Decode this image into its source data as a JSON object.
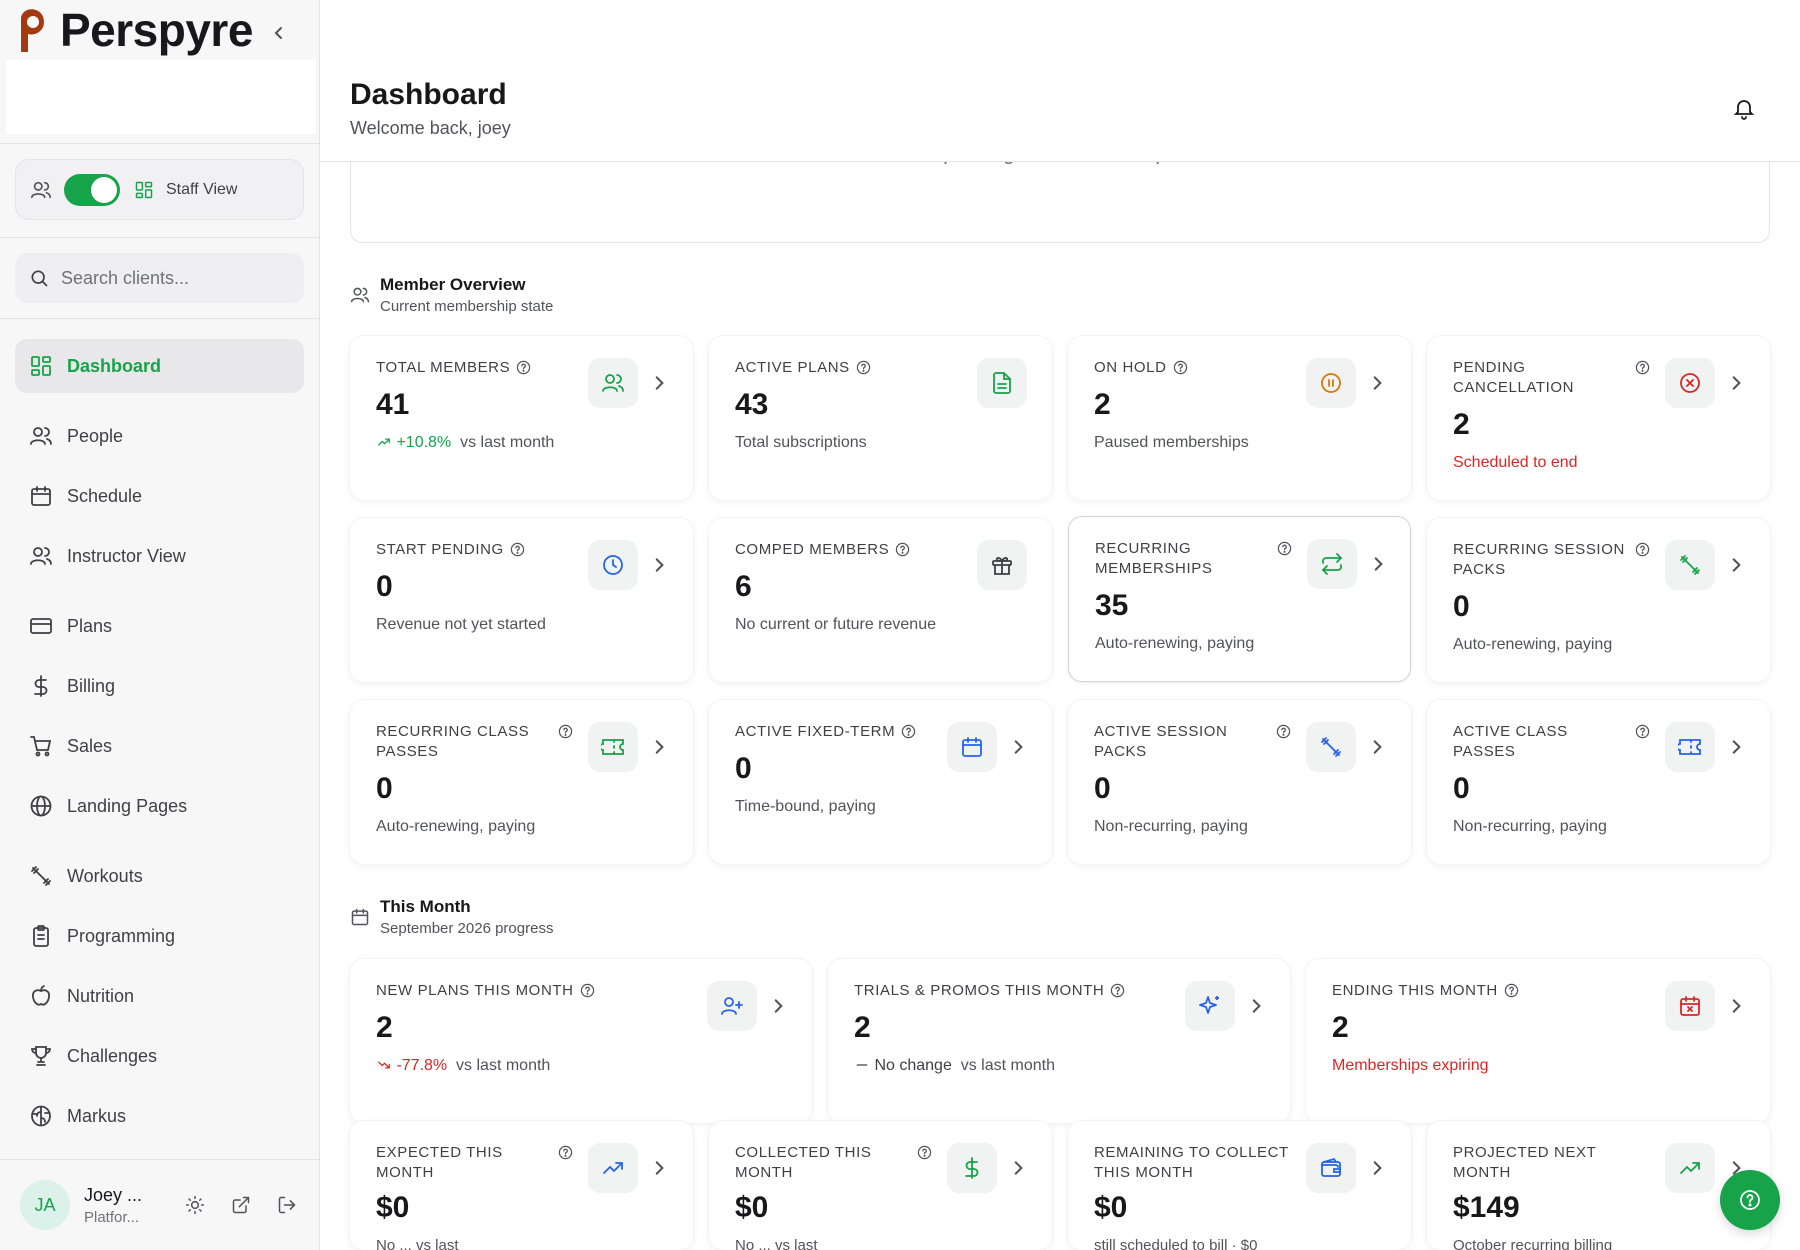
{
  "app": {
    "brand": "Perspyre"
  },
  "sidebar": {
    "view_label": "Staff View",
    "search_placeholder": "Search clients...",
    "items": [
      {
        "label": "Dashboard",
        "icon": "dashboard-icon",
        "active": true
      },
      {
        "label": "People",
        "icon": "people-icon"
      },
      {
        "label": "Schedule",
        "icon": "calendar-icon"
      },
      {
        "label": "Instructor View",
        "icon": "instructor-icon"
      },
      {
        "label": "Plans",
        "icon": "credit-card-icon"
      },
      {
        "label": "Billing",
        "icon": "dollar-icon"
      },
      {
        "label": "Sales",
        "icon": "cart-icon"
      },
      {
        "label": "Landing Pages",
        "icon": "globe-icon"
      },
      {
        "label": "Workouts",
        "icon": "dumbbell-icon"
      },
      {
        "label": "Programming",
        "icon": "clipboard-icon"
      },
      {
        "label": "Nutrition",
        "icon": "apple-icon"
      },
      {
        "label": "Challenges",
        "icon": "trophy-icon"
      },
      {
        "label": "Markus",
        "icon": "brain-icon"
      }
    ],
    "user": {
      "initials": "JA",
      "name": "Joey ...",
      "role": "Platfor..."
    }
  },
  "header": {
    "title": "Dashboard",
    "subtitle": "Welcome back, joey"
  },
  "pending_requests": {
    "text": "No pending cancellation requests"
  },
  "member_overview": {
    "title": "Member Overview",
    "subtitle": "Current membership state",
    "cards": [
      {
        "label": "TOTAL MEMBERS",
        "value": "41",
        "trend": "+10.8%",
        "trend_suffix": "vs last month",
        "icon": "users-icon"
      },
      {
        "label": "ACTIVE PLANS",
        "value": "43",
        "sub": "Total subscriptions",
        "icon": "document-icon"
      },
      {
        "label": "ON HOLD",
        "value": "2",
        "sub": "Paused memberships",
        "icon": "pause-icon"
      },
      {
        "label": "PENDING CANCELLATION",
        "value": "2",
        "sub": "Scheduled to end",
        "icon": "x-circle-icon"
      },
      {
        "label": "START PENDING",
        "value": "0",
        "sub": "Revenue not yet started",
        "icon": "clock-icon"
      },
      {
        "label": "COMPED MEMBERS",
        "value": "6",
        "sub": "No current or future revenue",
        "icon": "gift-icon"
      },
      {
        "label": "RECURRING MEMBERSHIPS",
        "value": "35",
        "sub": "Auto-renewing, paying",
        "icon": "repeat-icon"
      },
      {
        "label": "RECURRING SESSION PACKS",
        "value": "0",
        "sub": "Auto-renewing, paying",
        "icon": "dumbbell-icon"
      },
      {
        "label": "RECURRING CLASS PASSES",
        "value": "0",
        "sub": "Auto-renewing, paying",
        "icon": "ticket-icon"
      },
      {
        "label": "ACTIVE FIXED-TERM",
        "value": "0",
        "sub": "Time-bound, paying",
        "icon": "calendar-icon"
      },
      {
        "label": "ACTIVE SESSION PACKS",
        "value": "0",
        "sub": "Non-recurring, paying",
        "icon": "dumbbell-icon"
      },
      {
        "label": "ACTIVE CLASS PASSES",
        "value": "0",
        "sub": "Non-recurring, paying",
        "icon": "ticket-icon"
      }
    ]
  },
  "this_month": {
    "title": "This Month",
    "subtitle": "September 2026 progress",
    "cards": [
      {
        "label": "NEW PLANS THIS MONTH",
        "value": "2",
        "trend": "-77.8%",
        "trend_suffix": "vs last month",
        "icon": "user-plus-icon"
      },
      {
        "label": "TRIALS & PROMOS THIS MONTH",
        "value": "2",
        "trend": "No change",
        "trend_suffix": "vs last month",
        "icon": "sparkles-icon"
      },
      {
        "label": "ENDING THIS MONTH",
        "value": "2",
        "sub": "Memberships expiring",
        "icon": "calendar-x-icon"
      }
    ],
    "finance_cards": [
      {
        "label": "EXPECTED THIS MONTH",
        "value": "$0",
        "sub": "No ... vs last",
        "icon": "trending-up-icon"
      },
      {
        "label": "COLLECTED THIS MONTH",
        "value": "$0",
        "sub": "No ... vs last",
        "icon": "dollar-icon"
      },
      {
        "label": "REMAINING TO COLLECT THIS MONTH",
        "value": "$0",
        "sub": "still scheduled to bill · $0",
        "icon": "wallet-icon"
      },
      {
        "label": "PROJECTED NEXT MONTH",
        "value": "$149",
        "sub": "October recurring billing",
        "icon": "trending-up-icon"
      }
    ]
  },
  "colors": {
    "accent": "#16a34a",
    "danger": "#dc2626",
    "info": "#2563eb",
    "warning": "#d97706"
  }
}
